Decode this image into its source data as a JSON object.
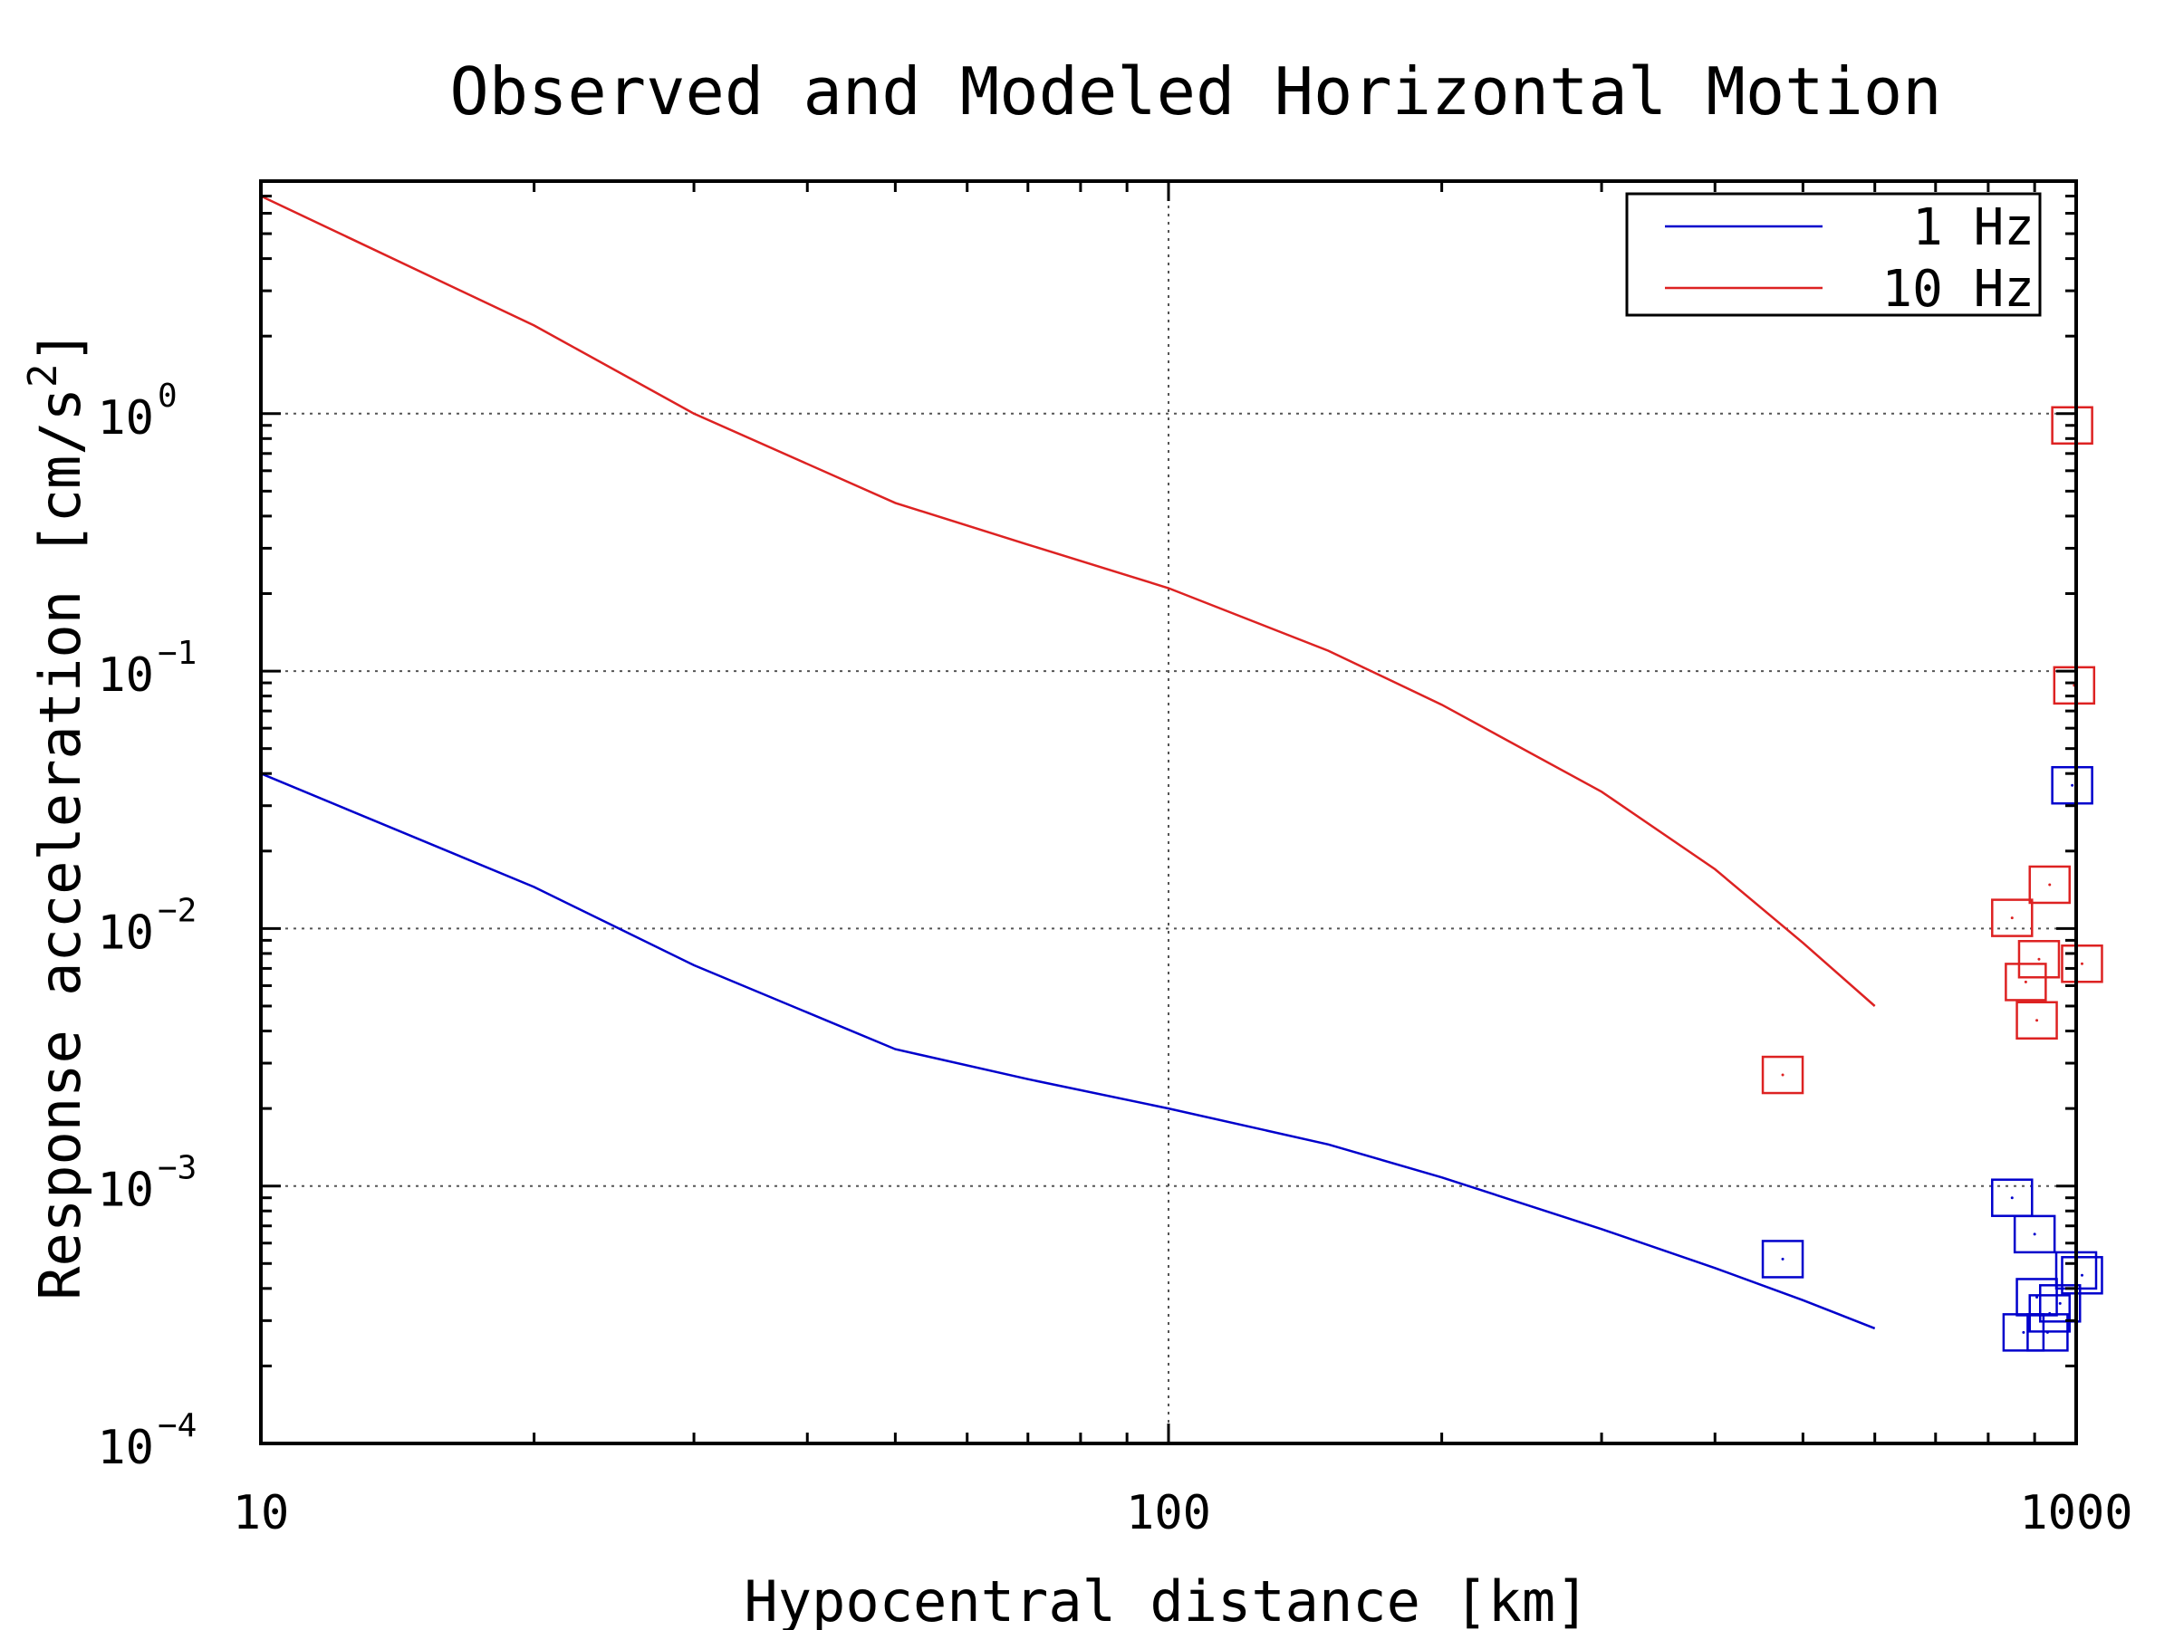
{
  "chart_data": {
    "type": "line",
    "title": "Observed and Modeled Horizontal Motion",
    "xlabel": "Hypocentral distance [km]",
    "ylabel": "Response acceleration [cm/s^2]",
    "ylabel_parts": {
      "main": "Response acceleration [cm/s",
      "sup": "2",
      "tail": "]"
    },
    "x_scale": "log",
    "y_scale": "log",
    "xlim": [
      10,
      1000
    ],
    "ylim": [
      0.0001,
      8
    ],
    "x_ticks": [
      {
        "value": 10,
        "label": "10"
      },
      {
        "value": 100,
        "label": "100"
      },
      {
        "value": 1000,
        "label": "1000"
      }
    ],
    "y_ticks": [
      {
        "value": 0.0001,
        "base": "10",
        "exp": "−4"
      },
      {
        "value": 0.001,
        "base": "10",
        "exp": "−3"
      },
      {
        "value": 0.01,
        "base": "10",
        "exp": "−2"
      },
      {
        "value": 0.1,
        "base": "10",
        "exp": "−1"
      },
      {
        "value": 1,
        "base": "10",
        "exp": "0"
      }
    ],
    "grid": true,
    "legend_position": "top-right",
    "series": [
      {
        "name": "1 Hz",
        "color": "#0000cc",
        "model": {
          "x": [
            10,
            20,
            30,
            50,
            70,
            100,
            150,
            200,
            300,
            400,
            500,
            600
          ],
          "y": [
            0.04,
            0.0145,
            0.0072,
            0.0034,
            0.0026,
            0.002,
            0.00145,
            0.00108,
            0.00068,
            0.00048,
            0.00036,
            0.00028
          ]
        },
        "observed": {
          "x": [
            475,
            850,
            875,
            900,
            905,
            930,
            935,
            960,
            990,
            1000,
            1015
          ],
          "y": [
            0.00052,
            0.0009,
            0.00027,
            0.00065,
            0.00037,
            0.00027,
            0.00032,
            0.00035,
            0.036,
            0.00047,
            0.00045
          ]
        }
      },
      {
        "name": "10 Hz",
        "color": "#dd2222",
        "model": {
          "x": [
            10,
            20,
            30,
            50,
            70,
            100,
            150,
            200,
            300,
            400,
            500,
            600
          ],
          "y": [
            7.0,
            2.2,
            1.0,
            0.45,
            0.31,
            0.21,
            0.12,
            0.074,
            0.034,
            0.017,
            0.0088,
            0.005
          ]
        },
        "observed": {
          "x": [
            475,
            850,
            880,
            905,
            910,
            935,
            990,
            995,
            1015
          ],
          "y": [
            0.0027,
            0.011,
            0.0062,
            0.0044,
            0.0076,
            0.0148,
            0.9,
            0.088,
            0.0073
          ]
        }
      }
    ]
  }
}
